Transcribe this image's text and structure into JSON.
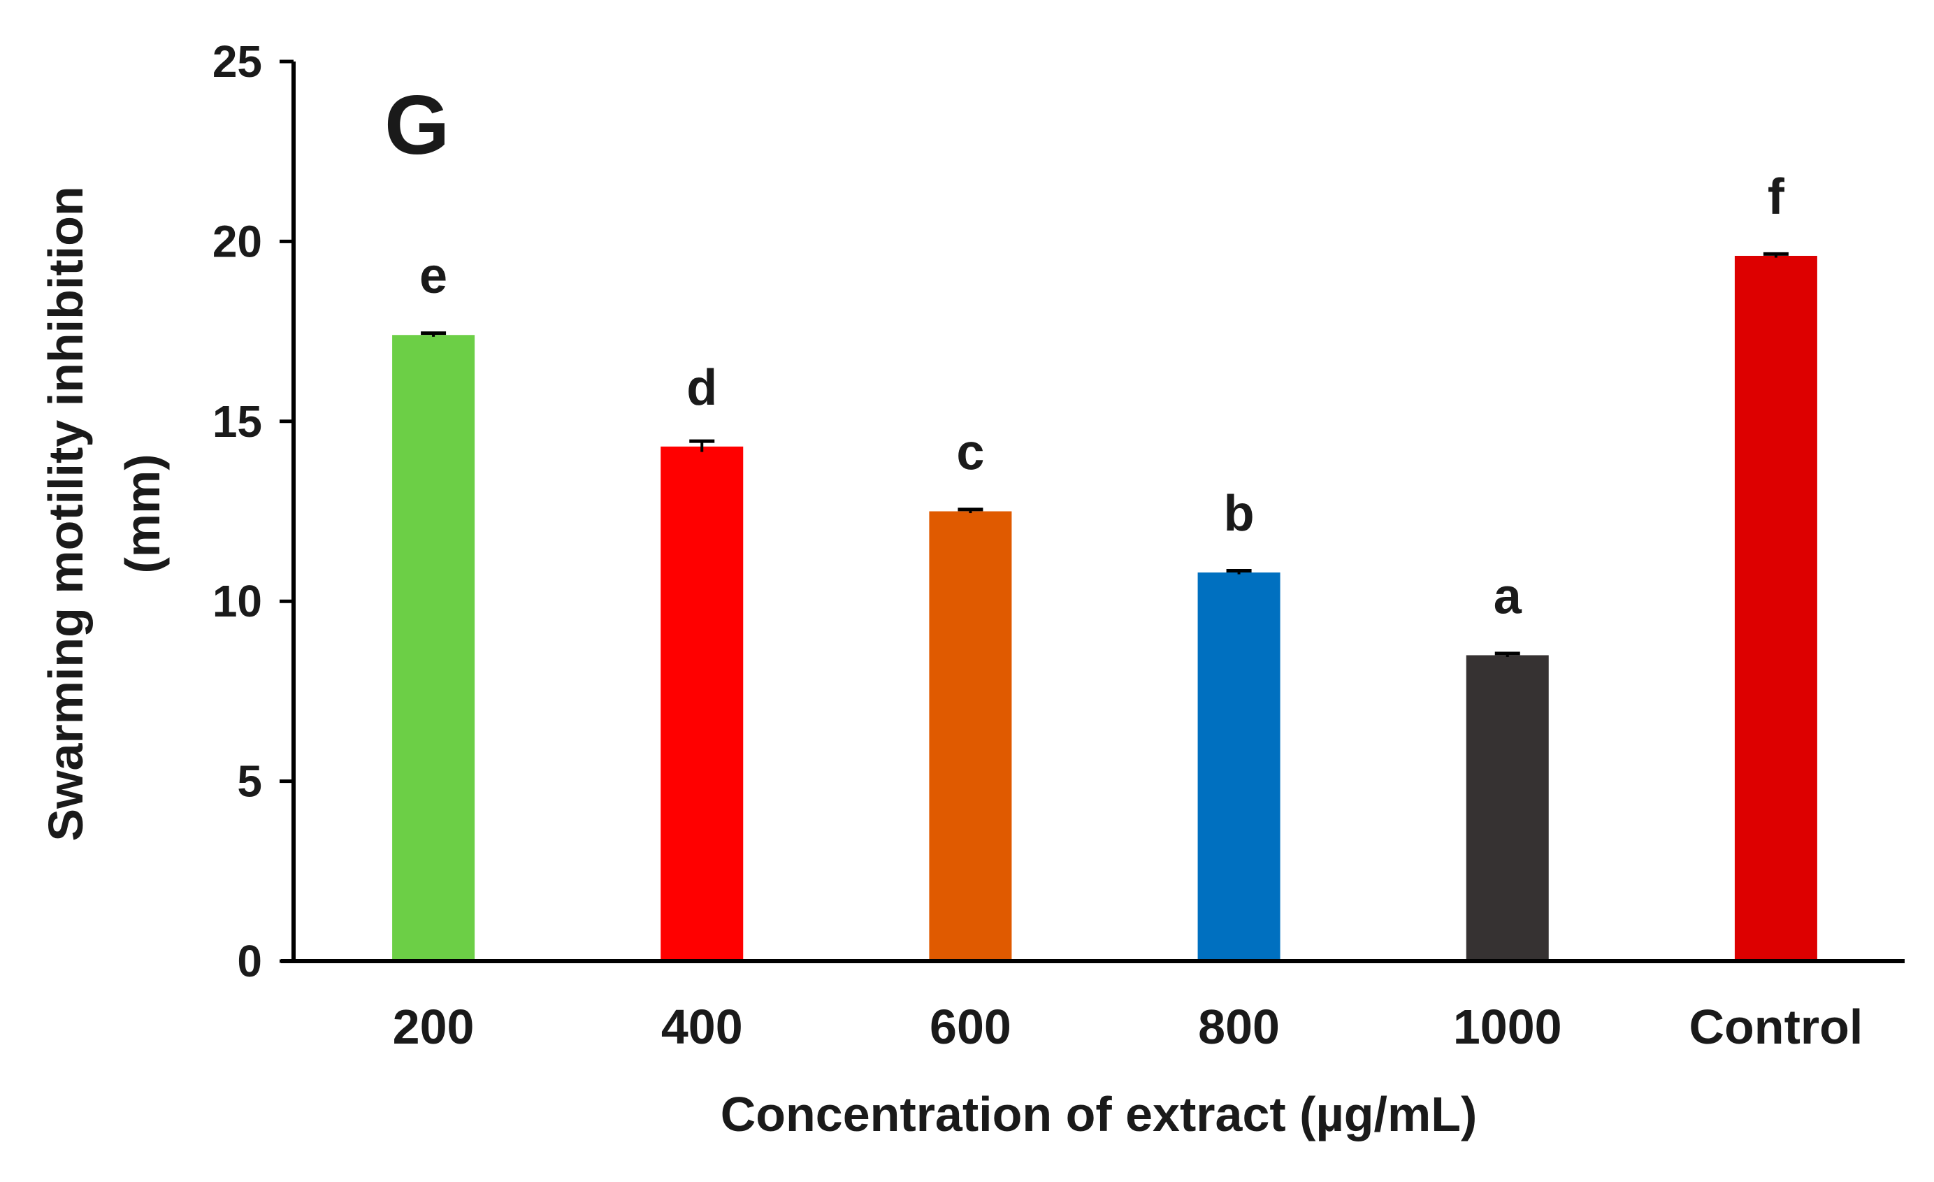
{
  "chart_data": {
    "type": "bar",
    "panel_label": "G",
    "categories": [
      "200",
      "400",
      "600",
      "800",
      "1000",
      "Control"
    ],
    "values": [
      17.4,
      14.3,
      12.5,
      10.8,
      8.5,
      19.6
    ],
    "errors": [
      0.05,
      0.15,
      0.05,
      0.05,
      0.05,
      0.05
    ],
    "significance": [
      "e",
      "d",
      "c",
      "b",
      "a",
      "f"
    ],
    "colors": [
      "#6ccf46",
      "#ff0000",
      "#e05a00",
      "#0070c0",
      "#363232",
      "#dd0000"
    ],
    "xlabel": "Concentration of extract (µg/mL)",
    "ylabel_lines": [
      "Swarming motility inhibition",
      "(mm)"
    ],
    "ylim": [
      0,
      25
    ],
    "yticks": [
      0,
      5,
      10,
      15,
      20,
      25
    ],
    "grid": false
  }
}
